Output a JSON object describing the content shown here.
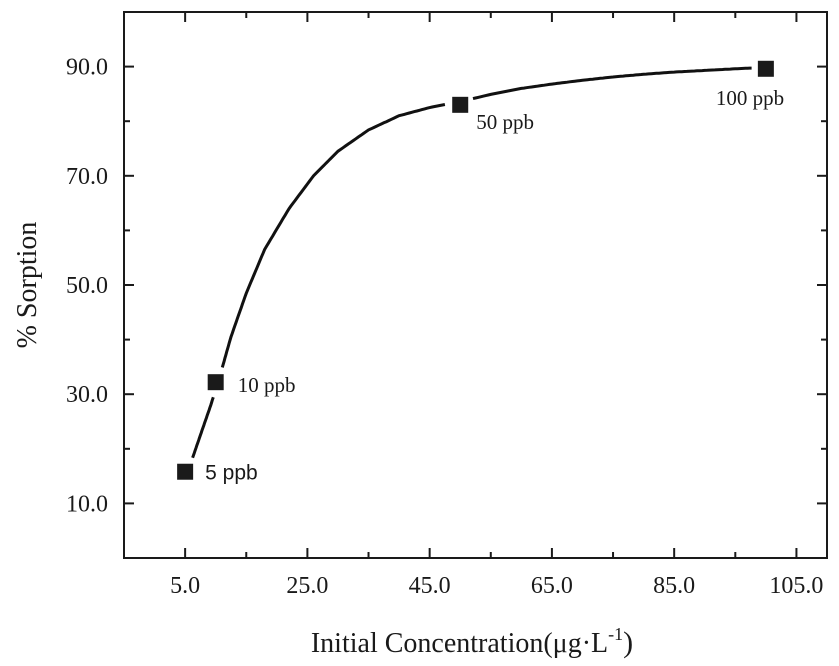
{
  "chart_data": {
    "type": "scatter",
    "title": "",
    "xlabel": "Initial Concentration",
    "xlabel_unit": "(μg·L",
    "xlabel_unit_exp": "-1",
    "xlabel_unit_close": ")",
    "ylabel": "% Sorption",
    "xlim": [
      -5,
      110
    ],
    "ylim": [
      0,
      100
    ],
    "x_ticks": [
      5,
      25,
      45,
      65,
      85,
      105
    ],
    "x_tick_labels": [
      "5.0",
      "25.0",
      "45.0",
      "65.0",
      "85.0",
      "105.0"
    ],
    "y_ticks": [
      10,
      30,
      50,
      70,
      90
    ],
    "y_tick_labels": [
      "10.0",
      "30.0",
      "50.0",
      "70.0",
      "90.0"
    ],
    "grid": false,
    "legend": "none",
    "marker_color": "#1a1a1a",
    "points": [
      {
        "x": 5,
        "y": 15.8,
        "label": "5 ppb"
      },
      {
        "x": 10,
        "y": 32.2,
        "label": "10 ppb"
      },
      {
        "x": 50,
        "y": 83.0,
        "label": "50 ppb"
      },
      {
        "x": 100,
        "y": 89.6,
        "label": "100 ppb"
      }
    ],
    "fit_curve": [
      [
        5.8,
        17.0
      ],
      [
        7.5,
        22.5
      ],
      [
        9.2,
        28.0
      ],
      [
        10.8,
        33.8
      ],
      [
        12.5,
        40.5
      ],
      [
        15,
        48.5
      ],
      [
        18,
        56.5
      ],
      [
        22,
        64.0
      ],
      [
        26,
        70.0
      ],
      [
        30,
        74.5
      ],
      [
        35,
        78.4
      ],
      [
        40,
        81.0
      ],
      [
        45,
        82.5
      ],
      [
        50,
        83.6
      ],
      [
        55,
        84.9
      ],
      [
        60,
        86.0
      ],
      [
        65,
        86.8
      ],
      [
        70,
        87.5
      ],
      [
        75,
        88.1
      ],
      [
        80,
        88.6
      ],
      [
        85,
        89.0
      ],
      [
        90,
        89.3
      ],
      [
        95,
        89.6
      ],
      [
        99,
        89.8
      ]
    ]
  }
}
